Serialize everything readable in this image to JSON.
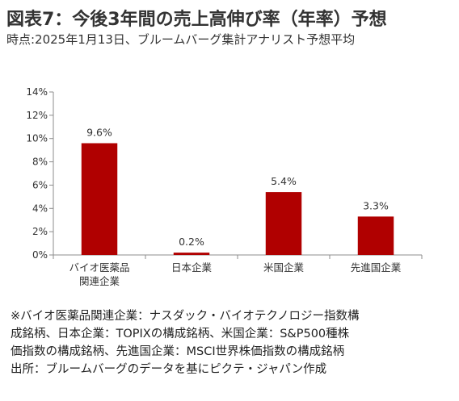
{
  "header": {
    "title": "図表7：今後3年間の売上高伸び率（年率）予想",
    "subtitle": "時点:2025年1月13日、ブルームバーグ集計アナリスト予想平均"
  },
  "chart_data": {
    "type": "bar",
    "categories": [
      [
        "バイオ医薬品",
        "関連企業"
      ],
      [
        "日本企業"
      ],
      [
        "米国企業"
      ],
      [
        "先進国企業"
      ]
    ],
    "values": [
      9.6,
      0.2,
      5.4,
      3.3
    ],
    "data_labels": [
      "9.6%",
      "0.2%",
      "5.4%",
      "3.3%"
    ],
    "y_ticks": [
      "0%",
      "2%",
      "4%",
      "6%",
      "8%",
      "10%",
      "12%",
      "14%"
    ],
    "ylim": [
      0,
      14
    ],
    "grid": false,
    "bar_color": "#b00000"
  },
  "notes": [
    "※バイオ医薬品関連企業：ナスダック・バイオテクノロジー指数構",
    "成銘柄、日本企業：TOPIXの構成銘柄、米国企業：S&P500種株",
    "価指数の構成銘柄、先進国企業：MSCI世界株価指数の構成銘柄",
    "出所：ブルームバーグのデータを基にピクテ・ジャパン作成"
  ]
}
